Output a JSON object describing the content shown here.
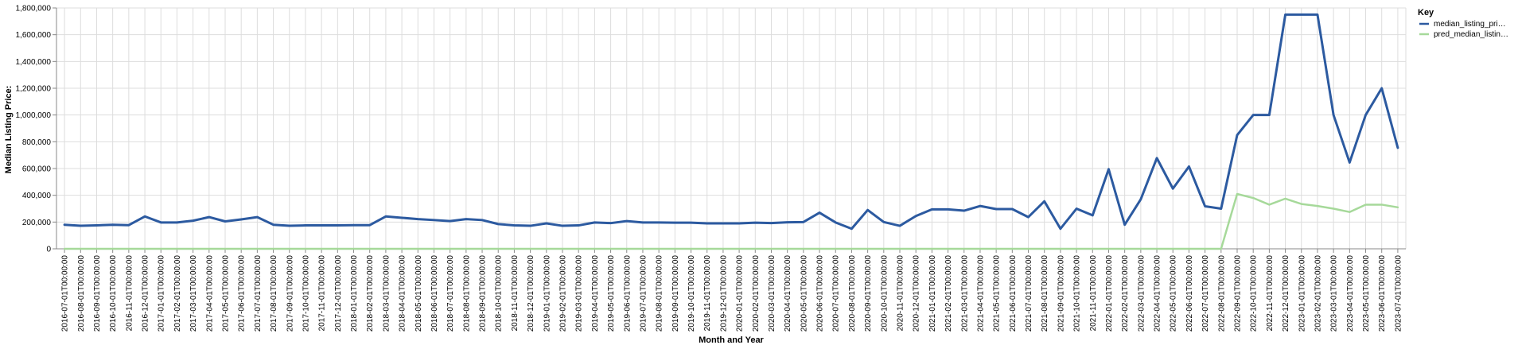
{
  "chart_data": {
    "type": "line",
    "xlabel": "Month and Year",
    "ylabel": "Median Listing Price:",
    "ylim": [
      0,
      1800000
    ],
    "y_ticks": [
      "0",
      "200,000",
      "400,000",
      "600,000",
      "800,000",
      "1,000,000",
      "1,200,000",
      "1,400,000",
      "1,600,000",
      "1,800,000"
    ],
    "y_tick_values": [
      0,
      200000,
      400000,
      600000,
      800000,
      1000000,
      1200000,
      1400000,
      1600000,
      1800000
    ],
    "grid": true,
    "legend": {
      "title": "Key",
      "placement": "right"
    },
    "x": [
      "2016-07-01T00:00:00",
      "2016-08-01T00:00:00",
      "2016-09-01T00:00:00",
      "2016-10-01T00:00:00",
      "2016-11-01T00:00:00",
      "2016-12-01T00:00:00",
      "2017-01-01T00:00:00",
      "2017-02-01T00:00:00",
      "2017-03-01T00:00:00",
      "2017-04-01T00:00:00",
      "2017-05-01T00:00:00",
      "2017-06-01T00:00:00",
      "2017-07-01T00:00:00",
      "2017-08-01T00:00:00",
      "2017-09-01T00:00:00",
      "2017-10-01T00:00:00",
      "2017-11-01T00:00:00",
      "2017-12-01T00:00:00",
      "2018-01-01T00:00:00",
      "2018-02-01T00:00:00",
      "2018-03-01T00:00:00",
      "2018-04-01T00:00:00",
      "2018-05-01T00:00:00",
      "2018-06-01T00:00:00",
      "2018-07-01T00:00:00",
      "2018-08-01T00:00:00",
      "2018-09-01T00:00:00",
      "2018-10-01T00:00:00",
      "2018-11-01T00:00:00",
      "2018-12-01T00:00:00",
      "2019-01-01T00:00:00",
      "2019-02-01T00:00:00",
      "2019-03-01T00:00:00",
      "2019-04-01T00:00:00",
      "2019-05-01T00:00:00",
      "2019-06-01T00:00:00",
      "2019-07-01T00:00:00",
      "2019-08-01T00:00:00",
      "2019-09-01T00:00:00",
      "2019-10-01T00:00:00",
      "2019-11-01T00:00:00",
      "2019-12-01T00:00:00",
      "2020-01-01T00:00:00",
      "2020-02-01T00:00:00",
      "2020-03-01T00:00:00",
      "2020-04-01T00:00:00",
      "2020-05-01T00:00:00",
      "2020-06-01T00:00:00",
      "2020-07-01T00:00:00",
      "2020-08-01T00:00:00",
      "2020-09-01T00:00:00",
      "2020-10-01T00:00:00",
      "2020-11-01T00:00:00",
      "2020-12-01T00:00:00",
      "2021-01-01T00:00:00",
      "2021-02-01T00:00:00",
      "2021-03-01T00:00:00",
      "2021-04-01T00:00:00",
      "2021-05-01T00:00:00",
      "2021-06-01T00:00:00",
      "2021-07-01T00:00:00",
      "2021-08-01T00:00:00",
      "2021-09-01T00:00:00",
      "2021-10-01T00:00:00",
      "2021-11-01T00:00:00",
      "2022-01-01T00:00:00",
      "2022-02-01T00:00:00",
      "2022-03-01T00:00:00",
      "2022-04-01T00:00:00",
      "2022-05-01T00:00:00",
      "2022-06-01T00:00:00",
      "2022-07-01T00:00:00",
      "2022-08-01T00:00:00",
      "2022-09-01T00:00:00",
      "2022-10-01T00:00:00",
      "2022-11-01T00:00:00",
      "2022-12-01T00:00:00",
      "2023-01-01T00:00:00",
      "2023-02-01T00:00:00",
      "2023-03-01T00:00:00",
      "2023-04-01T00:00:00",
      "2023-05-01T00:00:00",
      "2023-06-01T00:00:00",
      "2023-07-01T00:00:00"
    ],
    "series": [
      {
        "name": "median_listing_pri…",
        "color": "#2c5aa0",
        "values": [
          180000,
          172000,
          175000,
          180000,
          177000,
          242000,
          197000,
          197000,
          210000,
          237000,
          205000,
          220000,
          237000,
          180000,
          172000,
          175000,
          175000,
          175000,
          177000,
          177000,
          242000,
          232000,
          222000,
          215000,
          207000,
          222000,
          215000,
          185000,
          175000,
          172000,
          190000,
          172000,
          175000,
          197000,
          192000,
          207000,
          197000,
          197000,
          195000,
          195000,
          190000,
          190000,
          190000,
          195000,
          192000,
          198000,
          200000,
          270000,
          197000,
          150000,
          290000,
          200000,
          172000,
          245000,
          295000,
          295000,
          285000,
          320000,
          297000,
          297000,
          237000,
          355000,
          150000,
          300000,
          250000,
          595000,
          180000,
          370000,
          678000,
          450000,
          615000,
          318000,
          300000,
          850000,
          1000000,
          1000000,
          1750000,
          1750000,
          1750000,
          1000000,
          645000,
          1000000,
          1200000,
          755000
        ]
      },
      {
        "name": "pred_median_listin…",
        "color": "#a6d99a",
        "values": [
          0,
          0,
          0,
          0,
          0,
          0,
          0,
          0,
          0,
          0,
          0,
          0,
          0,
          0,
          0,
          0,
          0,
          0,
          0,
          0,
          0,
          0,
          0,
          0,
          0,
          0,
          0,
          0,
          0,
          0,
          0,
          0,
          0,
          0,
          0,
          0,
          0,
          0,
          0,
          0,
          0,
          0,
          0,
          0,
          0,
          0,
          0,
          0,
          0,
          0,
          0,
          0,
          0,
          0,
          0,
          0,
          0,
          0,
          0,
          0,
          0,
          0,
          0,
          0,
          0,
          0,
          0,
          0,
          0,
          0,
          0,
          0,
          0,
          410000,
          380000,
          330000,
          375000,
          335000,
          320000,
          300000,
          275000,
          330000,
          330000,
          310000
        ]
      }
    ]
  }
}
